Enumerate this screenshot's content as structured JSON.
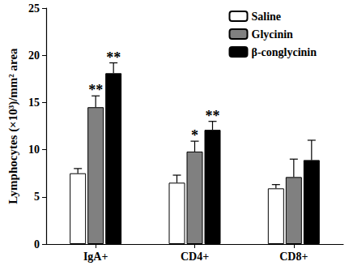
{
  "chart_data": {
    "type": "bar",
    "y_label": "Lymphocytes (×10³)/mm² area",
    "categories": [
      "IgA+",
      "CD4+",
      "CD8+"
    ],
    "series": [
      {
        "name": "Saline",
        "color": "#ffffff",
        "values": [
          7.5,
          6.5,
          5.9
        ],
        "errors": [
          0.5,
          0.8,
          0.4
        ],
        "annotations": [
          null,
          null,
          null
        ]
      },
      {
        "name": "Glycinin",
        "color": "#808080",
        "values": [
          14.5,
          9.8,
          7.1
        ],
        "errors": [
          1.2,
          1.1,
          1.9
        ],
        "annotations": [
          "**",
          "*",
          null
        ]
      },
      {
        "name": "β-conglycinin",
        "color": "#000000",
        "values": [
          18.1,
          12.1,
          8.9
        ],
        "errors": [
          1.1,
          0.9,
          2.1
        ],
        "annotations": [
          "**",
          "**",
          null
        ]
      }
    ],
    "ylim": [
      0,
      25
    ],
    "yticks": [
      0,
      5,
      10,
      15,
      20,
      25
    ],
    "grid": false,
    "legend": "upper right"
  }
}
